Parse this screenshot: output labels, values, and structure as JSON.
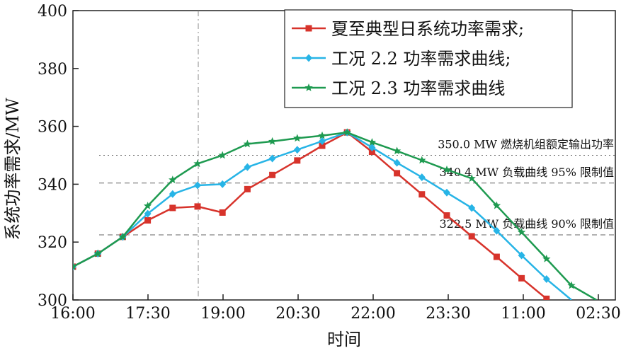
{
  "chart_data": {
    "type": "line",
    "xlabel": "时间",
    "ylabel": "系统功率需求/MW",
    "ylim": [
      300,
      400
    ],
    "yticks": [
      300,
      320,
      340,
      360,
      380,
      400
    ],
    "x_tick_labels": [
      "16:00",
      "17:30",
      "19:00",
      "20:30",
      "22:00",
      "23:30",
      "11:00",
      "02:30"
    ],
    "legend_position": "top-right",
    "series": [
      {
        "name": "夏至典型日系统功率需求;",
        "color": "#d7332b",
        "marker": "square",
        "values": [
          311.5,
          316,
          321.8,
          327.5,
          331.8,
          332.3,
          330.2,
          338.3,
          343.2,
          348.2,
          353.3,
          357.9,
          351.2,
          343.8,
          336.5,
          329.2,
          322.0,
          314.9,
          307.5,
          300.4
        ]
      },
      {
        "name": "工况 2.2 功率需求曲线;",
        "color": "#27b4e6",
        "marker": "diamond",
        "values": [
          311.5,
          316,
          321.8,
          329.8,
          336.6,
          339.6,
          340.0,
          345.9,
          348.9,
          351.9,
          354.9,
          357.9,
          352.7,
          347.4,
          342.4,
          337.1,
          331.8,
          323.9,
          315.4,
          307.2,
          300.0
        ]
      },
      {
        "name": "工况 2.3 功率需求曲线",
        "color": "#1e9a50",
        "marker": "star",
        "values": [
          311.5,
          316,
          321.8,
          332.5,
          341.5,
          347.1,
          350.0,
          353.9,
          354.8,
          355.9,
          356.8,
          357.9,
          354.5,
          351.5,
          348.3,
          345.0,
          342.0,
          332.6,
          323.4,
          314.2,
          305.0,
          300.0
        ]
      }
    ],
    "reference_lines": [
      {
        "value": 350.0,
        "label": "350.0 MW 燃烧机组额定输出功率",
        "style": "dotted"
      },
      {
        "value": 340.4,
        "label": "340.4 MW 负载曲线 95% 限制值",
        "style": "dashed"
      },
      {
        "value": 322.5,
        "label": "322.5 MW 负载曲线 90% 限制值",
        "style": "dashed"
      }
    ]
  }
}
